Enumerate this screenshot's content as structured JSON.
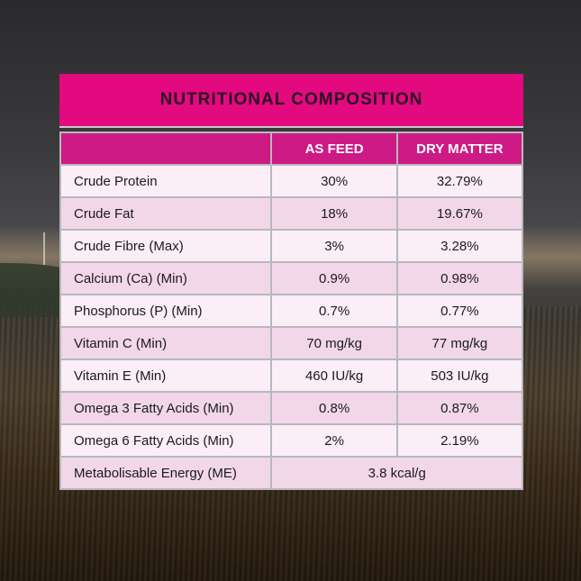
{
  "title": "NUTRITIONAL COMPOSITION",
  "columns": [
    "",
    "AS FEED",
    "DRY MATTER"
  ],
  "rows": [
    {
      "nutrient": "Crude Protein",
      "as_feed": "30%",
      "dry_matter": "32.79%"
    },
    {
      "nutrient": "Crude Fat",
      "as_feed": "18%",
      "dry_matter": "19.67%"
    },
    {
      "nutrient": "Crude Fibre (Max)",
      "as_feed": "3%",
      "dry_matter": "3.28%"
    },
    {
      "nutrient": "Calcium (Ca) (Min)",
      "as_feed": "0.9%",
      "dry_matter": "0.98%"
    },
    {
      "nutrient": "Phosphorus (P) (Min)",
      "as_feed": "0.7%",
      "dry_matter": "0.77%"
    },
    {
      "nutrient": "Vitamin C (Min)",
      "as_feed": "70 mg/kg",
      "dry_matter": "77 mg/kg"
    },
    {
      "nutrient": "Vitamin E (Min)",
      "as_feed": "460 IU/kg",
      "dry_matter": "503 IU/kg"
    },
    {
      "nutrient": "Omega 3 Fatty Acids (Min)",
      "as_feed": "0.8%",
      "dry_matter": "0.87%"
    },
    {
      "nutrient": "Omega 6 Fatty Acids (Min)",
      "as_feed": "2%",
      "dry_matter": "2.19%"
    }
  ],
  "energy": {
    "nutrient": "Metabolisable Energy (ME)",
    "value": "3.8 kcal/g"
  },
  "colors": {
    "title_bar": "#e3097f",
    "header": "#cd1a85",
    "row_light": "#fbeef6",
    "row_dark": "#f2d7e8"
  }
}
